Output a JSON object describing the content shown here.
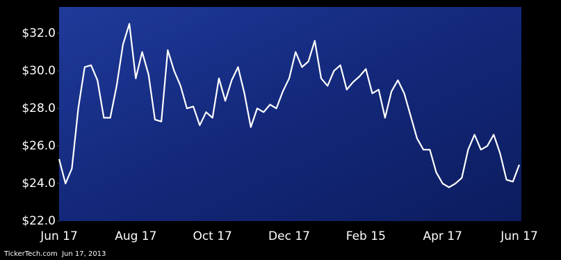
{
  "chart_data": {
    "type": "line",
    "categories": [
      "Jun 17",
      null,
      null,
      null,
      null,
      null,
      null,
      null,
      null,
      null,
      null,
      null,
      "Aug 17",
      null,
      null,
      null,
      null,
      null,
      null,
      null,
      null,
      null,
      null,
      null,
      "Oct 17",
      null,
      null,
      null,
      null,
      null,
      null,
      null,
      null,
      null,
      null,
      null,
      "Dec 17",
      null,
      null,
      null,
      null,
      null,
      null,
      null,
      null,
      null,
      null,
      null,
      "Feb 15",
      null,
      null,
      null,
      null,
      null,
      null,
      null,
      null,
      null,
      null,
      null,
      "Apr 17",
      null,
      null,
      null,
      null,
      null,
      null,
      null,
      null,
      null,
      null,
      null,
      "Jun 17"
    ],
    "series": [
      {
        "color": "#ffffff",
        "values": [
          25.3,
          24.0,
          24.8,
          28.0,
          30.2,
          30.3,
          29.5,
          27.5,
          27.5,
          29.2,
          31.4,
          32.5,
          29.6,
          31.0,
          29.8,
          27.4,
          27.3,
          31.1,
          30.0,
          29.2,
          28.0,
          28.1,
          27.1,
          27.8,
          27.5,
          29.6,
          28.4,
          29.5,
          30.2,
          28.8,
          27.0,
          28.0,
          27.8,
          28.2,
          28.0,
          28.9,
          29.6,
          31.0,
          30.2,
          30.5,
          31.6,
          29.6,
          29.2,
          30.0,
          30.3,
          29.0,
          29.4,
          29.7,
          30.1,
          28.8,
          29.0,
          27.5,
          28.9,
          29.5,
          28.8,
          27.6,
          26.4,
          25.8,
          25.8,
          24.6,
          24.0,
          23.8,
          24.0,
          24.3,
          25.8,
          26.6,
          25.8,
          26.0,
          26.6,
          25.6,
          24.2,
          24.1,
          25.0
        ]
      }
    ],
    "ylim": [
      22,
      33.4
    ],
    "yticks": [
      {
        "value": 22,
        "label": "$22.0"
      },
      {
        "value": 24,
        "label": "$24.0"
      },
      {
        "value": 26,
        "label": "$26.0"
      },
      {
        "value": 28,
        "label": "$28.0"
      },
      {
        "value": 30,
        "label": "$30.0"
      },
      {
        "value": 32,
        "label": "$32.0"
      }
    ],
    "source": "TickerTech.com  Jun 17, 2013"
  }
}
